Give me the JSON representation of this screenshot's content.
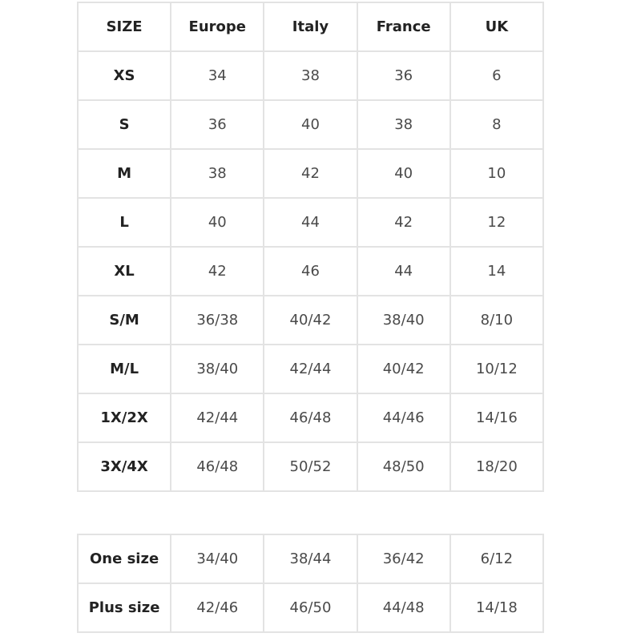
{
  "size_chart": {
    "headers": [
      "SIZE",
      "Europe",
      "Italy",
      "France",
      "UK"
    ],
    "rows": [
      [
        "XS",
        "34",
        "38",
        "36",
        "6"
      ],
      [
        "S",
        "36",
        "40",
        "38",
        "8"
      ],
      [
        "M",
        "38",
        "42",
        "40",
        "10"
      ],
      [
        "L",
        "40",
        "44",
        "42",
        "12"
      ],
      [
        "XL",
        "42",
        "46",
        "44",
        "14"
      ],
      [
        "S/M",
        "36/38",
        "40/42",
        "38/40",
        "8/10"
      ],
      [
        "M/L",
        "38/40",
        "42/44",
        "40/42",
        "10/12"
      ],
      [
        "1X/2X",
        "42/44",
        "46/48",
        "44/46",
        "14/16"
      ],
      [
        "3X/4X",
        "46/48",
        "50/52",
        "48/50",
        "18/20"
      ]
    ]
  },
  "special_sizes": {
    "rows": [
      [
        "One size",
        "34/40",
        "38/44",
        "36/42",
        "6/12"
      ],
      [
        "Plus size",
        "42/46",
        "46/50",
        "44/48",
        "14/18"
      ]
    ]
  }
}
